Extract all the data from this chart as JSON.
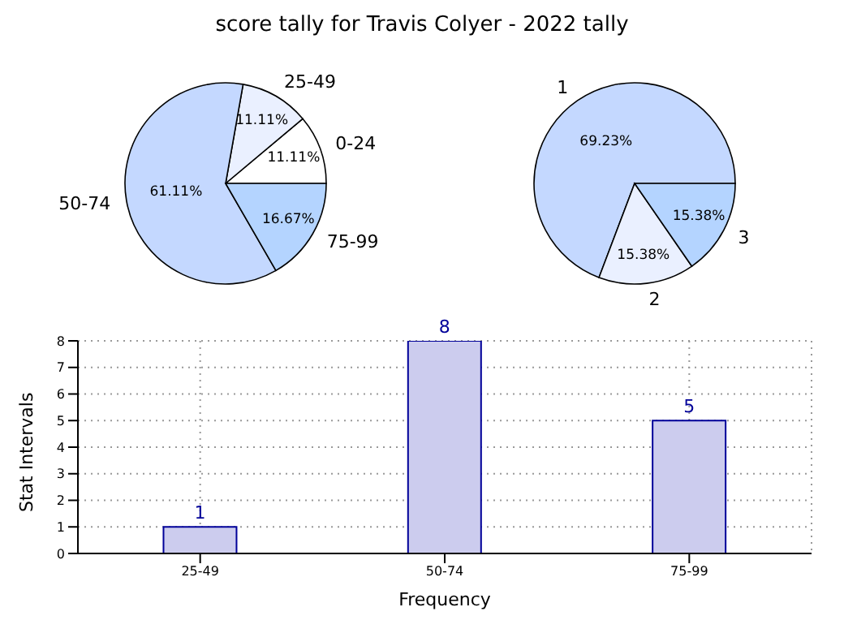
{
  "chart_data": [
    {
      "type": "pie",
      "title": "score tally for Travis Colyer - 2022 tally",
      "categories": [
        "0-24",
        "25-49",
        "50-74",
        "75-99"
      ],
      "values": [
        11.11,
        11.11,
        61.11,
        16.67
      ],
      "colors": [
        "#ffffff",
        "#eaf0ff",
        "#c4d8ff",
        "#b4d4ff"
      ],
      "value_labels": [
        "11.11%",
        "11.11%",
        "61.11%",
        "16.67%"
      ]
    },
    {
      "type": "pie",
      "categories": [
        "1",
        "2",
        "3"
      ],
      "values": [
        69.23,
        15.38,
        15.38
      ],
      "colors": [
        "#c4d8ff",
        "#eaf0ff",
        "#b4d4ff"
      ],
      "value_labels": [
        "69.23%",
        "15.38%",
        "15.38%"
      ]
    },
    {
      "type": "bar",
      "categories": [
        "25-49",
        "50-74",
        "75-99"
      ],
      "values": [
        1,
        8,
        5
      ],
      "color": "#ccccee",
      "xlabel": "Frequency",
      "ylabel": "Stat Intervals",
      "ylim": [
        0,
        8
      ],
      "yticks": [
        0,
        1,
        2,
        3,
        4,
        5,
        6,
        7,
        8
      ],
      "grid": true,
      "data_labels": true
    }
  ]
}
